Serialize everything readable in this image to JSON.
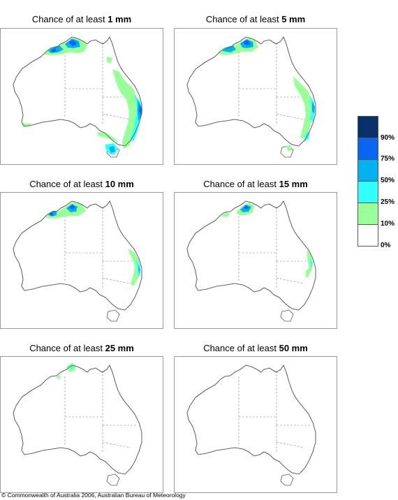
{
  "panels": [
    {
      "prefix": "Chance of at least ",
      "amount": "1 mm"
    },
    {
      "prefix": "Chance of at least ",
      "amount": "5 mm"
    },
    {
      "prefix": "Chance of at least ",
      "amount": "10 mm"
    },
    {
      "prefix": "Chance of at least ",
      "amount": "15 mm"
    },
    {
      "prefix": "Chance of at least ",
      "amount": "25 mm"
    },
    {
      "prefix": "Chance of at least ",
      "amount": "50 mm"
    }
  ],
  "legend": {
    "labels": [
      "90%",
      "75%",
      "50%",
      "25%",
      "10%",
      "0%"
    ],
    "colors": [
      "#08306b",
      "#0a66f0",
      "#00b2f0",
      "#33ffff",
      "#99ff99",
      "#ffffff"
    ]
  },
  "copyright": "© Commonwealth of Australia 2006, Australian Bureau of Meteorology"
}
